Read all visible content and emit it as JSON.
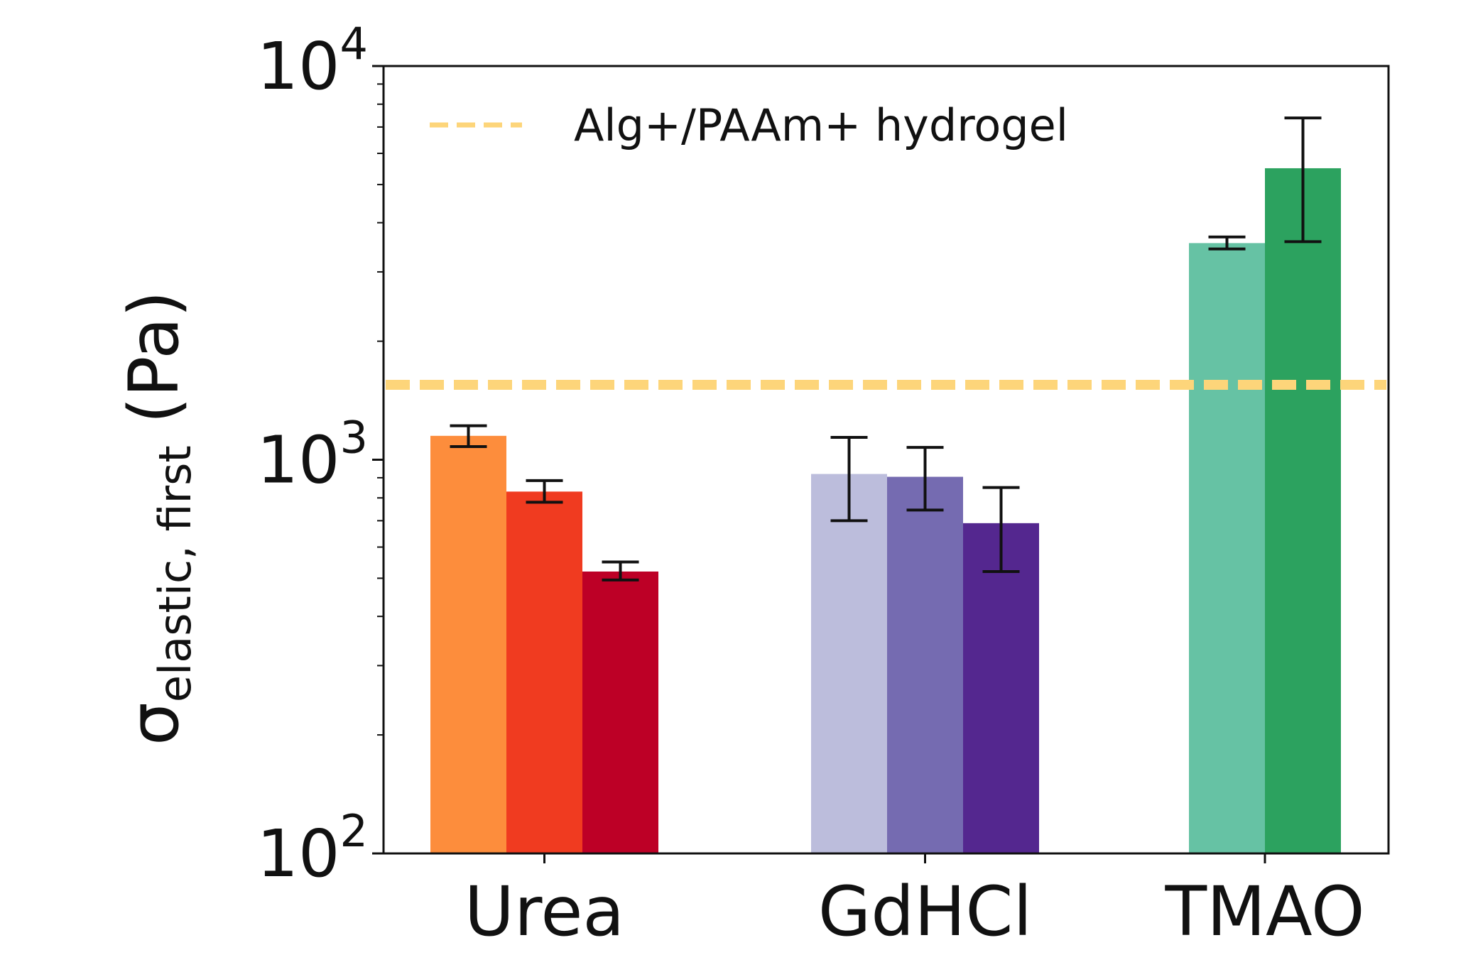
{
  "chart_data": {
    "type": "bar",
    "ylabel": {
      "symbol": "σ",
      "subscript": "elastic, first",
      "unit": " (Pa)"
    },
    "yscale": "log",
    "ylim": [
      100,
      10000
    ],
    "yticks": [
      {
        "value": 100,
        "base": "10",
        "exp": "2"
      },
      {
        "value": 1000,
        "base": "10",
        "exp": "3"
      },
      {
        "value": 10000,
        "base": "10",
        "exp": "4"
      }
    ],
    "categories": [
      "Urea",
      "GdHCl",
      "TMAO"
    ],
    "groups": [
      {
        "category": "Urea",
        "bars": [
          {
            "value": 1150,
            "error_low": 1080,
            "error_high": 1220,
            "color": "#fd8d3c"
          },
          {
            "value": 830,
            "error_low": 780,
            "error_high": 885,
            "color": "#f03b20"
          },
          {
            "value": 520,
            "error_low": 495,
            "error_high": 550,
            "color": "#bd0026"
          }
        ]
      },
      {
        "category": "GdHCl",
        "bars": [
          {
            "value": 920,
            "error_low": 700,
            "error_high": 1140,
            "color": "#bcbddc"
          },
          {
            "value": 905,
            "error_low": 745,
            "error_high": 1075,
            "color": "#756bb1"
          },
          {
            "value": 690,
            "error_low": 520,
            "error_high": 850,
            "color": "#54278f"
          }
        ]
      },
      {
        "category": "TMAO",
        "bars": [
          {
            "value": 3550,
            "error_low": 3430,
            "error_high": 3680,
            "color": "#66c2a4"
          },
          {
            "value": 5500,
            "error_low": 3580,
            "error_high": 7380,
            "color": "#2ca25f"
          }
        ]
      }
    ],
    "reference_line": {
      "label": "Alg+/PAAm+ hydrogel",
      "value": 1550,
      "color": "#fdd57a",
      "style": "dashed"
    },
    "legend": {
      "position": "top-left"
    },
    "grid": false
  }
}
